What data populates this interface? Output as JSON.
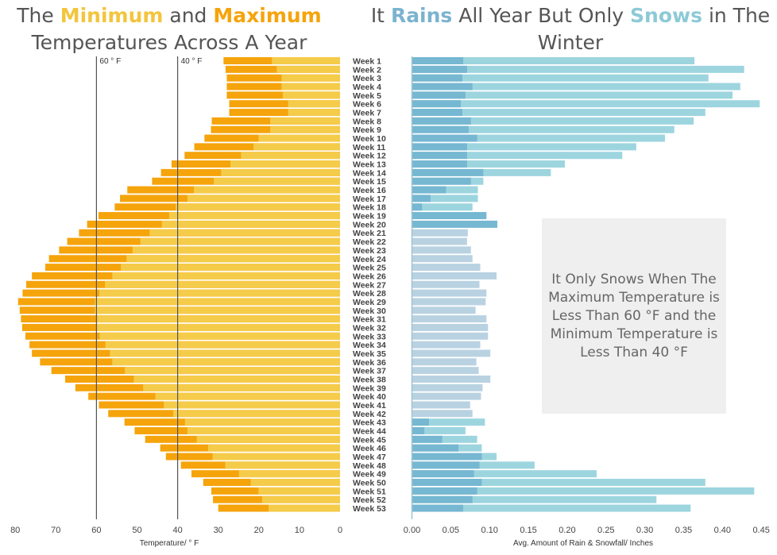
{
  "titles": {
    "left": {
      "parts": [
        {
          "text": "The ",
          "color": "#555555",
          "bold": false
        },
        {
          "text": "Minimum",
          "color": "#f2c53d",
          "bold": true
        },
        {
          "text": " and ",
          "color": "#555555",
          "bold": false
        },
        {
          "text": "Maximum",
          "color": "#f5a40c",
          "bold": true
        }
      ],
      "line2": "Temperatures Across A Year"
    },
    "right": {
      "parts": [
        {
          "text": "It ",
          "color": "#555555",
          "bold": false
        },
        {
          "text": "Rains",
          "color": "#7bb3cf",
          "bold": true
        },
        {
          "text": " All Year But Only ",
          "color": "#555555",
          "bold": false
        },
        {
          "text": "Snows",
          "color": "#8ccad6",
          "bold": true
        },
        {
          "text": " in The",
          "color": "#555555",
          "bold": false
        }
      ],
      "line2": "Winter"
    }
  },
  "annotation": {
    "text": "It Only Snows When The Maximum Temperature is Less Than 60 °F and the Minimum Temperature is Less Than 40 °F"
  },
  "chart_data": [
    {
      "type": "bar",
      "orientation": "horizontal",
      "direction": "reversed",
      "xlabel": "Temperature/ ° F",
      "xlim": [
        0,
        80
      ],
      "ticks": [
        80,
        70,
        60,
        50,
        40,
        30,
        20,
        10,
        0
      ],
      "reference_lines": [
        {
          "value": 60,
          "label": "60 ° F"
        },
        {
          "value": 40,
          "label": "40 ° F"
        }
      ],
      "grid": false,
      "colors": {
        "Maximum": "#f5a40c",
        "Minimum": "#f5cb4a"
      },
      "categories": [
        "Week 1",
        "Week 2",
        "Week 3",
        "Week 4",
        "Week 5",
        "Week 6",
        "Week 7",
        "Week 8",
        "Week 9",
        "Week 10",
        "Week 11",
        "Week 12",
        "Week 13",
        "Week 14",
        "Week 15",
        "Week 16",
        "Week 17",
        "Week 18",
        "Week 19",
        "Week 20",
        "Week 21",
        "Week 22",
        "Week 23",
        "Week 24",
        "Week 25",
        "Week 26",
        "Week 27",
        "Week 28",
        "Week 29",
        "Week 30",
        "Week 31",
        "Week 32",
        "Week 33",
        "Week 34",
        "Week 35",
        "Week 36",
        "Week 37",
        "Week 38",
        "Week 39",
        "Week 40",
        "Week 41",
        "Week 42",
        "Week 43",
        "Week 44",
        "Week 45",
        "Week 46",
        "Week 47",
        "Week 48",
        "Week 49",
        "Week 50",
        "Week 51",
        "Week 52",
        "Week 53"
      ],
      "series": [
        {
          "name": "Maximum",
          "values": [
            28.7,
            28.2,
            27.9,
            27.9,
            27.9,
            27.3,
            27.3,
            31.6,
            31.8,
            33.4,
            35.9,
            38.3,
            41.5,
            44.1,
            46.3,
            52.4,
            54.2,
            55.5,
            59.5,
            62.3,
            64.3,
            67.2,
            69.2,
            71.7,
            72.6,
            75.9,
            77.3,
            78.2,
            79.3,
            78.9,
            78.6,
            78.3,
            77.5,
            76.5,
            75.9,
            73.9,
            71.1,
            67.7,
            65.2,
            62.0,
            59.4,
            57.1,
            53.1,
            50.6,
            48.0,
            44.3,
            42.9,
            39.2,
            36.6,
            33.7,
            31.7,
            31.3,
            30.0
          ]
        },
        {
          "name": "Minimum",
          "values": [
            16.8,
            15.6,
            14.4,
            14.4,
            14.1,
            12.8,
            12.8,
            17.2,
            17.2,
            20.1,
            21.3,
            24.4,
            27.0,
            29.3,
            31.1,
            36.0,
            37.6,
            40.5,
            42.1,
            43.9,
            46.9,
            49.2,
            51.1,
            52.6,
            54.0,
            56.1,
            57.9,
            59.3,
            60.4,
            60.4,
            59.8,
            59.8,
            59.2,
            57.8,
            56.7,
            56.1,
            53.0,
            50.8,
            48.5,
            45.5,
            43.4,
            41.1,
            38.2,
            37.6,
            35.3,
            32.5,
            31.4,
            28.3,
            24.9,
            22.0,
            20.1,
            19.2,
            17.6
          ]
        }
      ]
    },
    {
      "type": "bar",
      "orientation": "horizontal",
      "xlabel": "Avg. Amount of Rain & Snowfall/ Inches",
      "xlim": [
        -0.01,
        0.45
      ],
      "ticks": [
        0.0,
        0.05,
        0.1,
        0.15,
        0.2,
        0.25,
        0.3,
        0.35,
        0.4,
        0.45
      ],
      "grid": false,
      "colors": {
        "Snow": "#9dd5df",
        "Rain": "#76b7d1",
        "RainOnly": "#b9d2e2"
      },
      "categories": [
        "Week 1",
        "Week 2",
        "Week 3",
        "Week 4",
        "Week 5",
        "Week 6",
        "Week 7",
        "Week 8",
        "Week 9",
        "Week 10",
        "Week 11",
        "Week 12",
        "Week 13",
        "Week 14",
        "Week 15",
        "Week 16",
        "Week 17",
        "Week 18",
        "Week 19",
        "Week 20",
        "Week 21",
        "Week 22",
        "Week 23",
        "Week 24",
        "Week 25",
        "Week 26",
        "Week 27",
        "Week 28",
        "Week 29",
        "Week 30",
        "Week 31",
        "Week 32",
        "Week 33",
        "Week 34",
        "Week 35",
        "Week 36",
        "Week 37",
        "Week 38",
        "Week 39",
        "Week 40",
        "Week 41",
        "Week 42",
        "Week 43",
        "Week 44",
        "Week 45",
        "Week 46",
        "Week 47",
        "Week 48",
        "Week 49",
        "Week 50",
        "Week 51",
        "Week 52",
        "Week 53"
      ],
      "series": [
        {
          "name": "Snow",
          "values": [
            0.364,
            0.428,
            0.382,
            0.423,
            0.413,
            0.448,
            0.378,
            0.363,
            0.338,
            0.326,
            0.289,
            0.271,
            0.197,
            0.179,
            0.092,
            0.085,
            0.085,
            0.078,
            0.002,
            0.002,
            0,
            0,
            0,
            0,
            0,
            0,
            0,
            0,
            0,
            0,
            0,
            0,
            0,
            0,
            0,
            0,
            0,
            0,
            0,
            0,
            0,
            0,
            0.094,
            0.069,
            0.084,
            0.09,
            0.109,
            0.158,
            0.238,
            0.378,
            0.441,
            0.315,
            0.359
          ]
        },
        {
          "name": "Rain",
          "values": [
            0.066,
            0.071,
            0.065,
            0.078,
            0.069,
            0.063,
            0.065,
            0.076,
            0.073,
            0.084,
            0.071,
            0.071,
            0.071,
            0.092,
            0.076,
            0.044,
            0.024,
            0.013,
            0.096,
            0.11,
            0.072,
            0.071,
            0.076,
            0.078,
            0.088,
            0.109,
            0.087,
            0.096,
            0.095,
            0.082,
            0.096,
            0.098,
            0.098,
            0.088,
            0.101,
            0.083,
            0.086,
            0.101,
            0.091,
            0.089,
            0.075,
            0.078,
            0.022,
            0.016,
            0.039,
            0.06,
            0.09,
            0.087,
            0.08,
            0.09,
            0.084,
            0.078,
            0.066
          ]
        }
      ]
    }
  ]
}
